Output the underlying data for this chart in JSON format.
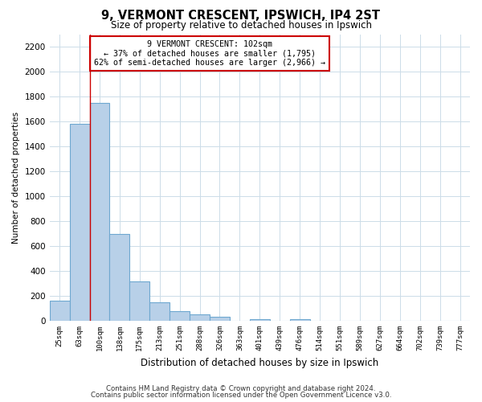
{
  "title": "9, VERMONT CRESCENT, IPSWICH, IP4 2ST",
  "subtitle": "Size of property relative to detached houses in Ipswich",
  "xlabel": "Distribution of detached houses by size in Ipswich",
  "ylabel": "Number of detached properties",
  "bar_labels": [
    "25sqm",
    "63sqm",
    "100sqm",
    "138sqm",
    "175sqm",
    "213sqm",
    "251sqm",
    "288sqm",
    "326sqm",
    "363sqm",
    "401sqm",
    "439sqm",
    "476sqm",
    "514sqm",
    "551sqm",
    "589sqm",
    "627sqm",
    "664sqm",
    "702sqm",
    "739sqm",
    "777sqm"
  ],
  "bar_values": [
    160,
    1580,
    1750,
    700,
    315,
    150,
    75,
    50,
    30,
    0,
    15,
    0,
    15,
    0,
    0,
    0,
    0,
    0,
    0,
    0,
    0
  ],
  "bar_color": "#b8d0e8",
  "bar_edge_color": "#6fa8d0",
  "vline_color": "#cc0000",
  "vline_index": 2,
  "ylim": [
    0,
    2300
  ],
  "yticks": [
    0,
    200,
    400,
    600,
    800,
    1000,
    1200,
    1400,
    1600,
    1800,
    2000,
    2200
  ],
  "annotation_title": "9 VERMONT CRESCENT: 102sqm",
  "annotation_line1": "← 37% of detached houses are smaller (1,795)",
  "annotation_line2": "62% of semi-detached houses are larger (2,966) →",
  "annotation_box_color": "#ffffff",
  "annotation_box_edgecolor": "#cc0000",
  "footer1": "Contains HM Land Registry data © Crown copyright and database right 2024.",
  "footer2": "Contains public sector information licensed under the Open Government Licence v3.0.",
  "background_color": "#ffffff",
  "grid_color": "#ccdce8"
}
